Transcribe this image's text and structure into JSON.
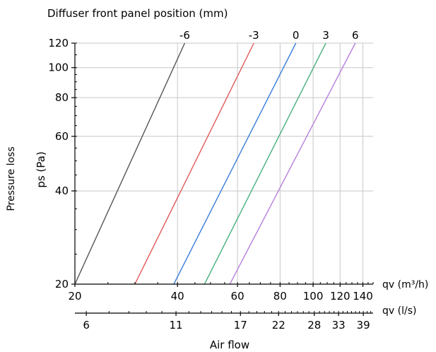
{
  "chart_data": {
    "type": "line",
    "title": "Diffuser front panel position (mm)",
    "ylabel_outer": "Pressure loss",
    "ylabel": "ps (Pa)",
    "xlabel": "Air flow",
    "x_scale": "log",
    "y_scale": "log",
    "xlim": [
      20,
      150
    ],
    "ylim": [
      20,
      120
    ],
    "x_axis_top_label": "qv (m³/h)",
    "x_axis_bottom_label": "qv (l/s)",
    "x_ticks": [
      20,
      40,
      60,
      80,
      100,
      120,
      140
    ],
    "x_tick_labels": [
      "20",
      "40",
      "60",
      "80",
      "100",
      "120",
      "140"
    ],
    "y_ticks": [
      20,
      40,
      60,
      80,
      100,
      120
    ],
    "y_tick_labels": [
      "20",
      "40",
      "60",
      "80",
      "100",
      "120"
    ],
    "ls_ticks_m3h": [
      21.6,
      39.6,
      61.2,
      79.2,
      100.8,
      118.8,
      140.4
    ],
    "ls_tick_labels": [
      "6",
      "11",
      "17",
      "22",
      "28",
      "33",
      "39"
    ],
    "grid": true,
    "colors": {
      "grid": "#c8c8c8",
      "axis": "#000000",
      "s_minus6": "#555555",
      "s_minus3": "#e05a5a",
      "s_0": "#3a7dd8",
      "s_3": "#4aaf7d",
      "s_6": "#b77fdc"
    },
    "series": [
      {
        "name": "-6",
        "color_key": "s_minus6",
        "points": [
          [
            20,
            20
          ],
          [
            42,
            120
          ]
        ]
      },
      {
        "name": "-3",
        "color_key": "s_minus3",
        "points": [
          [
            30,
            20
          ],
          [
            67,
            120
          ]
        ]
      },
      {
        "name": "0",
        "color_key": "s_0",
        "points": [
          [
            39,
            20
          ],
          [
            89,
            120
          ]
        ]
      },
      {
        "name": "3",
        "color_key": "s_3",
        "points": [
          [
            48,
            20
          ],
          [
            109,
            120
          ]
        ]
      },
      {
        "name": "6",
        "color_key": "s_6",
        "points": [
          [
            57,
            20
          ],
          [
            133,
            120
          ]
        ]
      }
    ]
  }
}
